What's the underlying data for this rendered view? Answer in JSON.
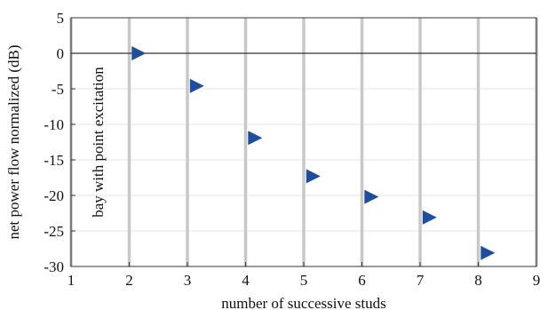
{
  "chart_data": {
    "type": "scatter",
    "title": "",
    "xlabel": "number of successive studs",
    "ylabel": "net power flow normalized (dB)",
    "xlim": [
      1,
      9
    ],
    "ylim": [
      -30,
      5
    ],
    "xticks": [
      1,
      2,
      3,
      4,
      5,
      6,
      7,
      8,
      9
    ],
    "yticks": [
      5,
      0,
      -5,
      -10,
      -15,
      -20,
      -25,
      -30
    ],
    "grid": true,
    "legend": "none",
    "marker": "right-triangle",
    "marker_color": "#1f4e9c",
    "stud_line_color": "#c8c8c8",
    "zero_line": 0,
    "x": [
      2.15,
      3.15,
      4.15,
      5.15,
      6.15,
      7.15,
      8.15
    ],
    "y": [
      0,
      -4.6,
      -11.9,
      -17.3,
      -20.2,
      -23.1,
      -28.1
    ],
    "annotations": [
      {
        "text": "bay with point excitation",
        "x": 1.55,
        "y": -12.5,
        "orientation": "vertical"
      }
    ]
  }
}
